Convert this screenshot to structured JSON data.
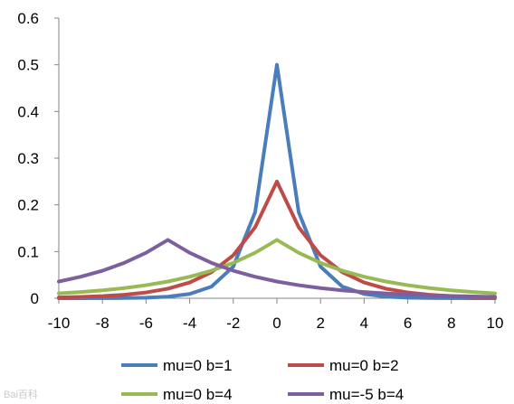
{
  "chart_data": {
    "type": "line",
    "title": "",
    "xlabel": "",
    "ylabel": "",
    "xlim": [
      -10,
      10
    ],
    "ylim": [
      0,
      0.6
    ],
    "x_ticks": [
      -10,
      -8,
      -6,
      -4,
      -2,
      0,
      2,
      4,
      6,
      8,
      10
    ],
    "y_ticks": [
      0,
      0.1,
      0.2,
      0.3,
      0.4,
      0.5,
      0.6
    ],
    "x_tick_labels": [
      "-10",
      "-8",
      "-6",
      "-4",
      "-2",
      "0",
      "2",
      "4",
      "6",
      "8",
      "10"
    ],
    "y_tick_labels": [
      "0",
      "0.1",
      "0.2",
      "0.3",
      "0.4",
      "0.5",
      "0.6"
    ],
    "grid": false,
    "legend_position": "bottom",
    "x": [
      -10,
      -9,
      -8,
      -7,
      -6,
      -5,
      -4,
      -3,
      -2,
      -1,
      0,
      1,
      2,
      3,
      4,
      5,
      6,
      7,
      8,
      9,
      10
    ],
    "series": [
      {
        "name": "mu=0 b=1",
        "color": "#4a7ebb",
        "values": [
          2e-05,
          6e-05,
          0.00017,
          0.00046,
          0.00124,
          0.00337,
          0.00916,
          0.0249,
          0.0677,
          0.184,
          0.5,
          0.184,
          0.0677,
          0.0249,
          0.00916,
          0.00337,
          0.00124,
          0.00046,
          0.00017,
          6e-05,
          2e-05
        ]
      },
      {
        "name": "mu=0 b=2",
        "color": "#be4b48",
        "values": [
          0.00168,
          0.00278,
          0.00458,
          0.00755,
          0.0124,
          0.0205,
          0.0338,
          0.0558,
          0.092,
          0.152,
          0.25,
          0.152,
          0.092,
          0.0558,
          0.0338,
          0.0205,
          0.0124,
          0.00755,
          0.00458,
          0.00278,
          0.00168
        ]
      },
      {
        "name": "mu=0 b=4",
        "color": "#98b954",
        "values": [
          0.0103,
          0.0132,
          0.0169,
          0.0217,
          0.0279,
          0.0358,
          0.046,
          0.059,
          0.0758,
          0.0974,
          0.125,
          0.0974,
          0.0758,
          0.059,
          0.046,
          0.0358,
          0.0279,
          0.0217,
          0.0169,
          0.0132,
          0.0103
        ]
      },
      {
        "name": "mu=-5 b=4",
        "color": "#7d5fa0",
        "values": [
          0.0358,
          0.046,
          0.059,
          0.0758,
          0.0974,
          0.125,
          0.0974,
          0.0758,
          0.059,
          0.046,
          0.0358,
          0.0279,
          0.0217,
          0.0169,
          0.0132,
          0.0103,
          0.008,
          0.0062,
          0.0049,
          0.0038,
          0.0029
        ]
      }
    ]
  },
  "watermark": "Bai百科"
}
